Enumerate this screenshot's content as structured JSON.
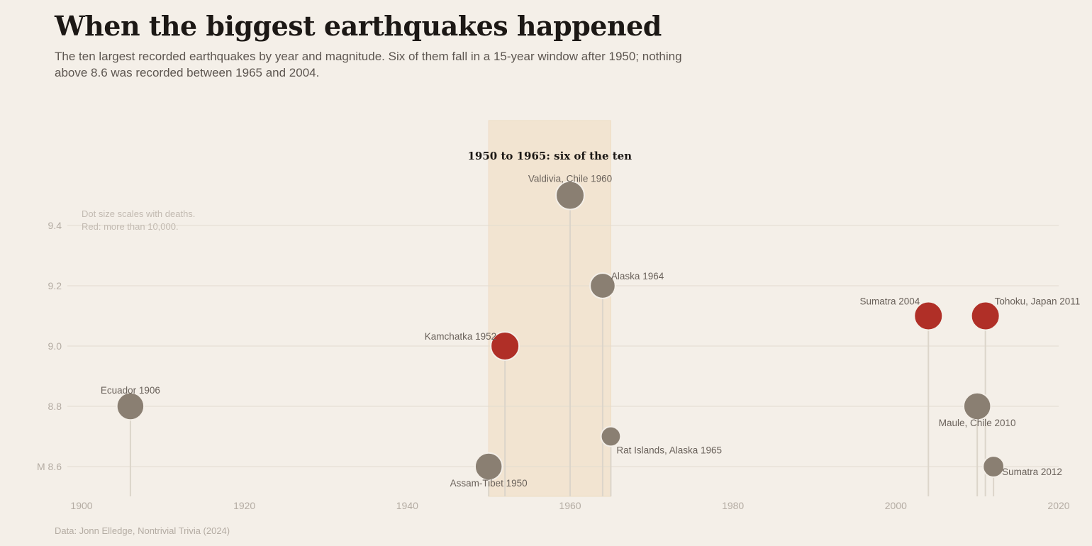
{
  "header": {
    "title": "When the biggest earthquakes happened",
    "subtitle": "The ten largest recorded earthquakes by year and magnitude. Six of them fall in a 15-year window after 1950; nothing above 8.6 was recorded between 1965 and 2004."
  },
  "footer": {
    "source": "Data: Jonn Elledge, Nontrivial Trivia (2024)"
  },
  "chart_data": {
    "type": "scatter",
    "xlim": [
      1900,
      2020
    ],
    "ylim": [
      8.5,
      9.6
    ],
    "x_ticks": [
      {
        "value": 1900,
        "label": "1900"
      },
      {
        "value": 1920,
        "label": "1920"
      },
      {
        "value": 1940,
        "label": "1940"
      },
      {
        "value": 1960,
        "label": "1960"
      },
      {
        "value": 1980,
        "label": "1980"
      },
      {
        "value": 2000,
        "label": "2000"
      },
      {
        "value": 2020,
        "label": "2020"
      }
    ],
    "y_ticks": [
      {
        "value": 8.6,
        "label": "M 8.6"
      },
      {
        "value": 8.8,
        "label": "8.8"
      },
      {
        "value": 9.0,
        "label": "9.0"
      },
      {
        "value": 9.2,
        "label": "9.2"
      },
      {
        "value": 9.4,
        "label": "9.4"
      }
    ],
    "grid": true,
    "highlight_band": {
      "from": 1950,
      "to": 1965,
      "label": "1950 to 1965: six of the ten"
    },
    "note": [
      "Dot size scales with deaths.",
      "Red: more than 10,000."
    ],
    "colors": {
      "over_10000": "#b02f27",
      "other": "#8a7f72",
      "band": "#f2e4d1",
      "stem": "#dcd5ca",
      "grid": "#e2dbcf"
    },
    "points": [
      {
        "label": "Ecuador 1906",
        "year": 1906,
        "magnitude": 8.8,
        "over_10000": false,
        "size": 2
      },
      {
        "label": "Assam-Tibet 1950",
        "year": 1950,
        "magnitude": 8.6,
        "over_10000": false,
        "size": 2
      },
      {
        "label": "Kamchatka 1952",
        "year": 1952,
        "magnitude": 9.0,
        "over_10000": true,
        "size": 3
      },
      {
        "label": "Valdivia, Chile 1960",
        "year": 1960,
        "magnitude": 9.5,
        "over_10000": false,
        "size": 2.3
      },
      {
        "label": "Alaska 1964",
        "year": 1964,
        "magnitude": 9.2,
        "over_10000": false,
        "size": 1.6
      },
      {
        "label": "Rat Islands, Alaska 1965",
        "year": 1965,
        "magnitude": 8.7,
        "over_10000": false,
        "size": 0.7
      },
      {
        "label": "Sumatra 2004",
        "year": 2004,
        "magnitude": 9.1,
        "over_10000": true,
        "size": 5
      },
      {
        "label": "Maule, Chile 2010",
        "year": 2010,
        "magnitude": 8.8,
        "over_10000": false,
        "size": 2
      },
      {
        "label": "Tohoku, Japan 2011",
        "year": 2011,
        "magnitude": 9.1,
        "over_10000": true,
        "size": 3
      },
      {
        "label": "Sumatra 2012",
        "year": 2012,
        "magnitude": 8.6,
        "over_10000": false,
        "size": 0.9
      }
    ]
  }
}
